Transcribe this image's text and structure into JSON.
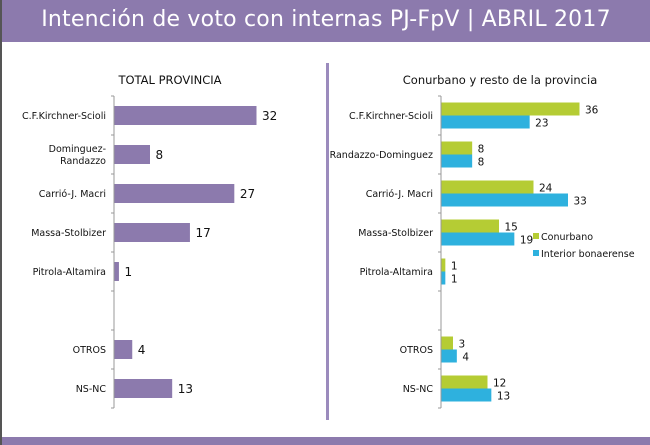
{
  "header": {
    "title": "Intención de voto con internas PJ-FpV | ABRIL 2017"
  },
  "colors": {
    "header_band": "#8c7aad",
    "total_bar": "#8c7aad",
    "conurbano": "#b5cc34",
    "interior": "#2eb1de"
  },
  "chart_data": [
    {
      "type": "bar",
      "orientation": "horizontal",
      "title": "TOTAL PROVINCIA",
      "categories": [
        "C.F.Kirchner-Scioli",
        "Dominguez-\nRandazzo",
        "Carrió-J. Macri",
        "Massa-Stolbizer",
        "Pitrola-Altamira",
        "",
        "OTROS",
        "NS-NC"
      ],
      "values": [
        32,
        8,
        27,
        17,
        1,
        null,
        4,
        13
      ],
      "xlabel": "",
      "ylabel": "",
      "xlim": [
        0,
        40
      ],
      "grid": false,
      "data_labels": true
    },
    {
      "type": "bar",
      "orientation": "horizontal",
      "title": "Conurbano y resto de la provincia",
      "categories": [
        "C.F.Kirchner-Scioli",
        "Randazzo-Dominguez",
        "Carrió-J. Macri",
        "Massa-Stolbizer",
        "Pitrola-Altamira",
        "",
        "OTROS",
        "NS-NC"
      ],
      "series": [
        {
          "name": "Conurbano",
          "values": [
            36,
            8,
            24,
            15,
            1,
            null,
            3,
            12
          ]
        },
        {
          "name": "Interior bonaerense",
          "values": [
            23,
            8,
            33,
            19,
            1,
            null,
            4,
            13
          ]
        }
      ],
      "xlabel": "",
      "ylabel": "",
      "xlim": [
        0,
        40
      ],
      "grid": false,
      "legend": "right",
      "data_labels": true
    }
  ]
}
